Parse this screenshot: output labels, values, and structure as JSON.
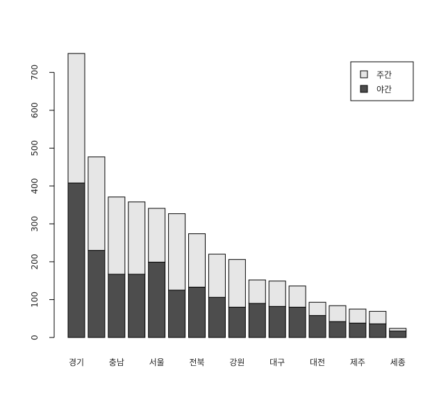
{
  "chart_data": {
    "type": "bar",
    "stacked": true,
    "title": "",
    "xlabel": "",
    "ylabel": "",
    "ylim": [
      0,
      750
    ],
    "yticks": [
      0,
      100,
      200,
      300,
      400,
      500,
      600,
      700
    ],
    "categories": [
      "경기",
      "",
      "충남",
      "",
      "서울",
      "",
      "전북",
      "",
      "강원",
      "",
      "대구",
      "",
      "대전",
      "",
      "제주",
      "",
      "세종"
    ],
    "series": [
      {
        "name": "야간",
        "color": "#4d4d4d",
        "values": [
          408,
          230,
          167,
          167,
          199,
          125,
          133,
          106,
          80,
          90,
          82,
          80,
          58,
          42,
          38,
          36,
          17
        ]
      },
      {
        "name": "주간",
        "color": "#e6e6e6",
        "values": [
          342,
          247,
          204,
          191,
          142,
          202,
          141,
          114,
          126,
          62,
          67,
          56,
          35,
          42,
          37,
          33,
          7
        ]
      }
    ],
    "legend": {
      "position": "top-right",
      "order": [
        "주간",
        "야간"
      ]
    },
    "grid": false
  }
}
